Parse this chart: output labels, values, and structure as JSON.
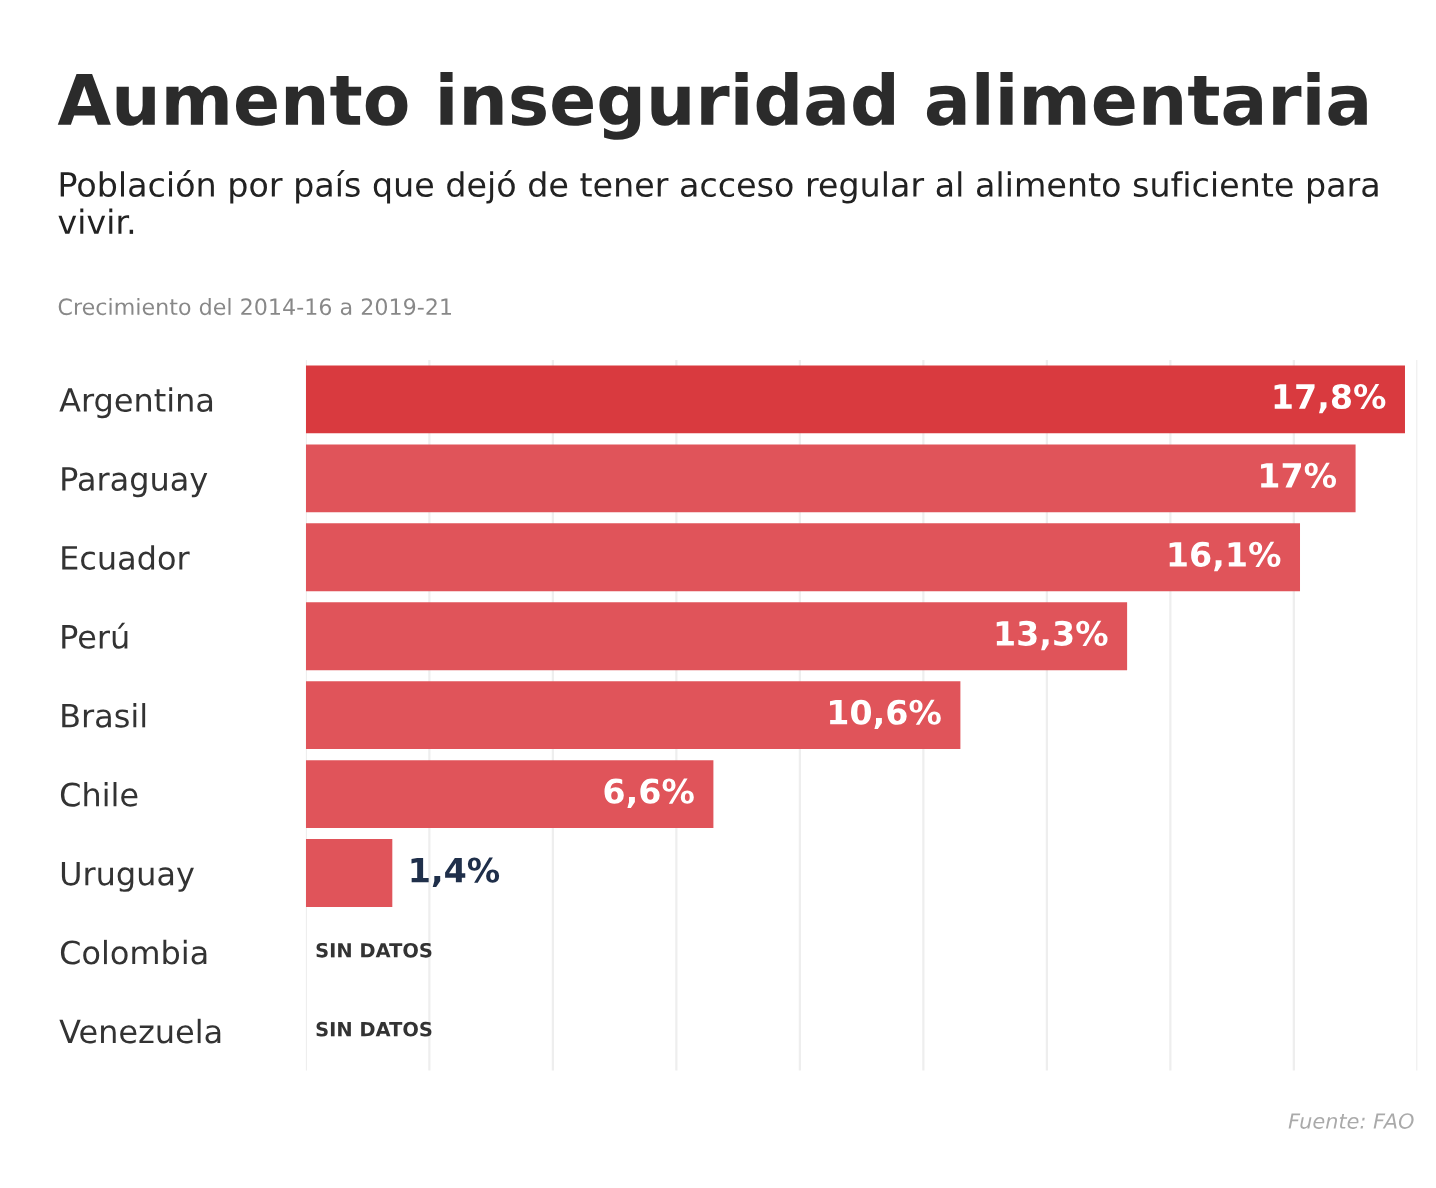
{
  "chart_data": {
    "type": "bar",
    "orientation": "horizontal",
    "title": "Aumento inseguridad alimentaria",
    "subtitle": "Población por país que dejó de tener acceso regular al alimento suficiente para vivir.",
    "annotations": [
      "Crecimiento del 2014-16 a 2019-21",
      "Fuente: FAO"
    ],
    "categories": [
      "Argentina",
      "Paraguay",
      "Ecuador",
      "Perú",
      "Brasil",
      "Chile",
      "Uruguay",
      "Colombia",
      "Venezuela"
    ],
    "values": [
      17.8,
      17,
      16.1,
      13.3,
      10.6,
      6.6,
      1.4,
      null,
      null
    ],
    "value_labels": [
      "17,8%",
      "17%",
      "16,1%",
      "13,3%",
      "10,6%",
      "6,6%",
      "1,4%",
      "SIN DATOS",
      "SIN DATOS"
    ],
    "colors": [
      "#d93a3f",
      "#e0545a",
      "#e0545a",
      "#e0545a",
      "#e0545a",
      "#e0545a",
      "#e0545a",
      "#e0545a",
      "#e0545a"
    ],
    "xlim": [
      0,
      18
    ],
    "xticks": [
      {
        "value": 0,
        "label": null
      },
      {
        "value": 2,
        "label": null
      },
      {
        "value": 4,
        "label": null
      },
      {
        "value": 6,
        "label": null
      },
      {
        "value": 8,
        "label": null
      },
      {
        "value": 10,
        "label": null
      },
      {
        "value": 12,
        "label": null
      },
      {
        "value": 14,
        "label": null
      },
      {
        "value": 16,
        "label": null
      },
      {
        "value": 18,
        "label": null
      }
    ],
    "grid": "x",
    "tick_labels": "y"
  }
}
